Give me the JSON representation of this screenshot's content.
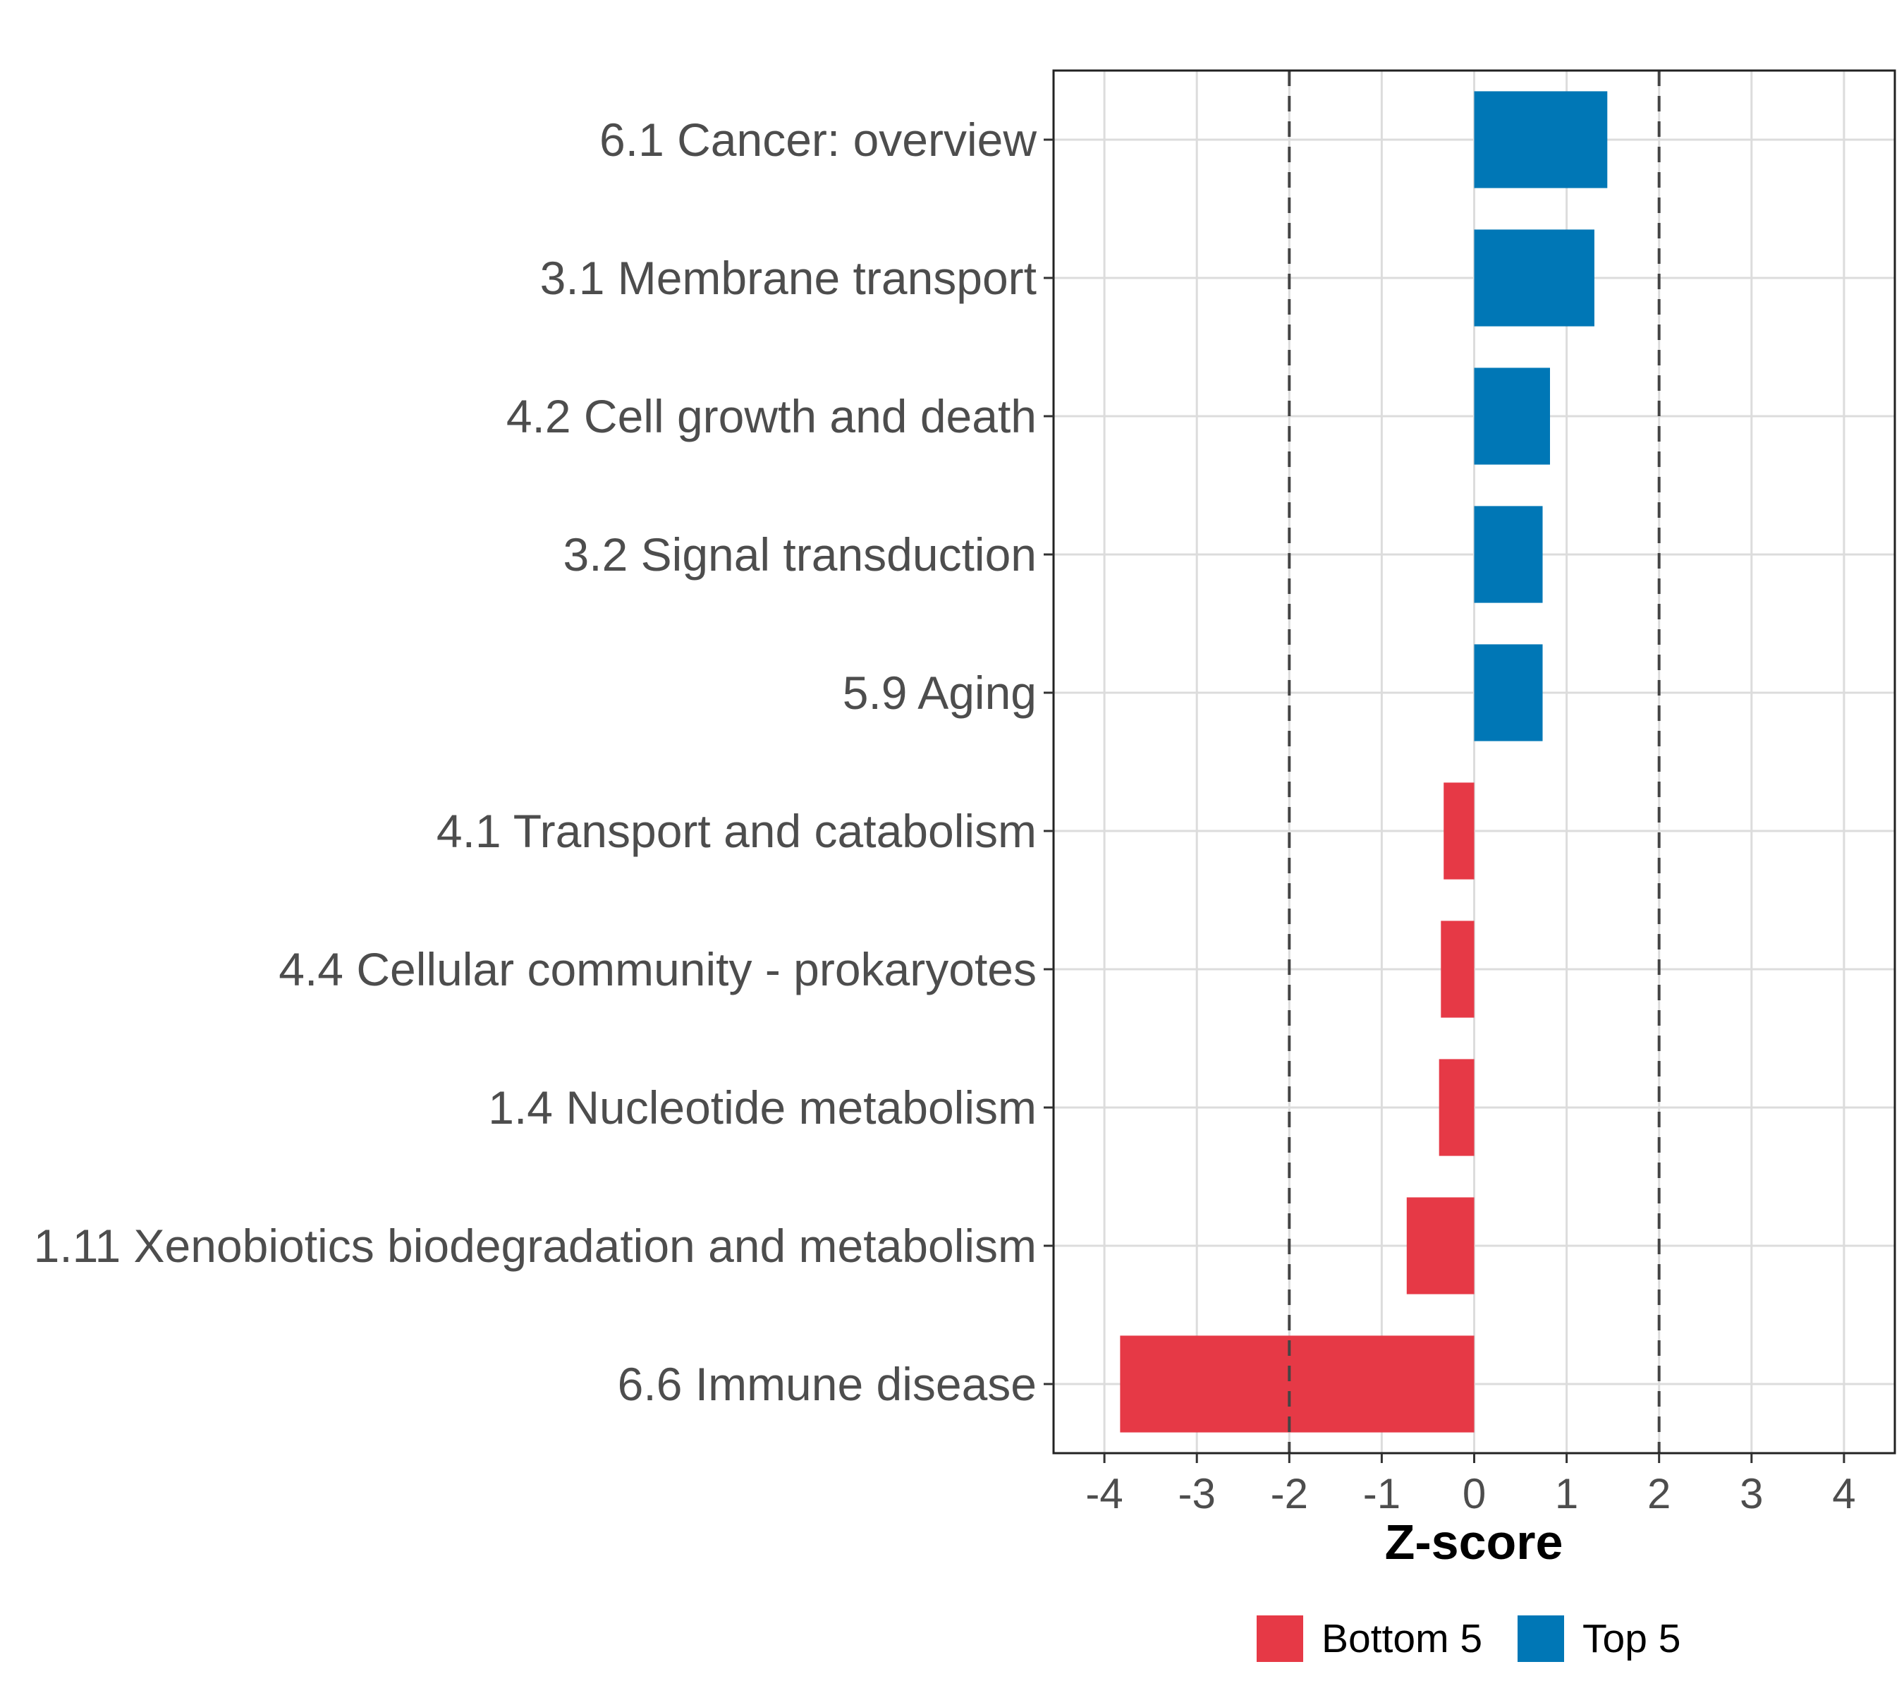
{
  "chart_data": {
    "type": "bar",
    "orientation": "horizontal",
    "title": "",
    "xlabel": "Z-score",
    "ylabel": "",
    "xlim": [
      -4.55,
      4.55
    ],
    "xticks": [
      -4,
      -3,
      -2,
      -1,
      0,
      1,
      2,
      3,
      4
    ],
    "xtick_labels": [
      "-4",
      "-3",
      "-2",
      "-1",
      "0",
      "1",
      "2",
      "3",
      "4"
    ],
    "reference_lines": [
      -2,
      2
    ],
    "grid": true,
    "categories": [
      "6.1 Cancer: overview",
      "3.1 Membrane transport",
      "4.2 Cell growth and death",
      "3.2 Signal transduction",
      "5.9 Aging",
      "4.1 Transport and catabolism",
      "4.4 Cellular community - prokaryotes",
      "1.4 Nucleotide metabolism",
      "1.11 Xenobiotics biodegradation and metabolism",
      "6.6 Immune disease"
    ],
    "values": [
      1.44,
      1.3,
      0.82,
      0.74,
      0.74,
      -0.33,
      -0.36,
      -0.38,
      -0.73,
      -3.83
    ],
    "groups": [
      "Top 5",
      "Top 5",
      "Top 5",
      "Top 5",
      "Top 5",
      "Bottom 5",
      "Bottom 5",
      "Bottom 5",
      "Bottom 5",
      "Bottom 5"
    ],
    "legend": {
      "position": "bottom",
      "items": [
        {
          "label": "Bottom 5",
          "color": "#E63946"
        },
        {
          "label": "Top 5",
          "color": "#0077B6"
        }
      ]
    }
  },
  "colors": {
    "top": "#0077B6",
    "bottom": "#E63946",
    "grid": "#dcdcdc",
    "axis_text": "#4d4d4d",
    "panel_border": "#222222",
    "ref_line": "#444444"
  }
}
